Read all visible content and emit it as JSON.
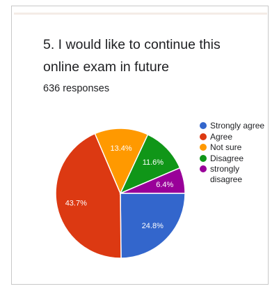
{
  "header": {
    "question": "5. I would like to continue this online exam in future",
    "responses": "636 responses"
  },
  "chart_data": {
    "type": "pie",
    "categories": [
      "Strongly agree",
      "Agree",
      "Not sure",
      "Disagree",
      "strongly disagree"
    ],
    "values": [
      24.8,
      43.7,
      13.4,
      11.6,
      6.4
    ],
    "labels": [
      "24.8%",
      "43.7%",
      "13.4%",
      "11.6%",
      "6.4%"
    ],
    "colors": [
      "#3366cc",
      "#dc3912",
      "#ff9900",
      "#109618",
      "#990099"
    ],
    "legend_position": "right",
    "start_angle_deg": 90,
    "direction": "clockwise"
  },
  "legend": {
    "items": [
      {
        "label": "Strongly agree",
        "color": "#3366cc"
      },
      {
        "label": "Agree",
        "color": "#dc3912"
      },
      {
        "label": "Not sure",
        "color": "#ff9900"
      },
      {
        "label": "Disagree",
        "color": "#109618"
      },
      {
        "label": "strongly disagree",
        "color": "#990099"
      }
    ]
  }
}
